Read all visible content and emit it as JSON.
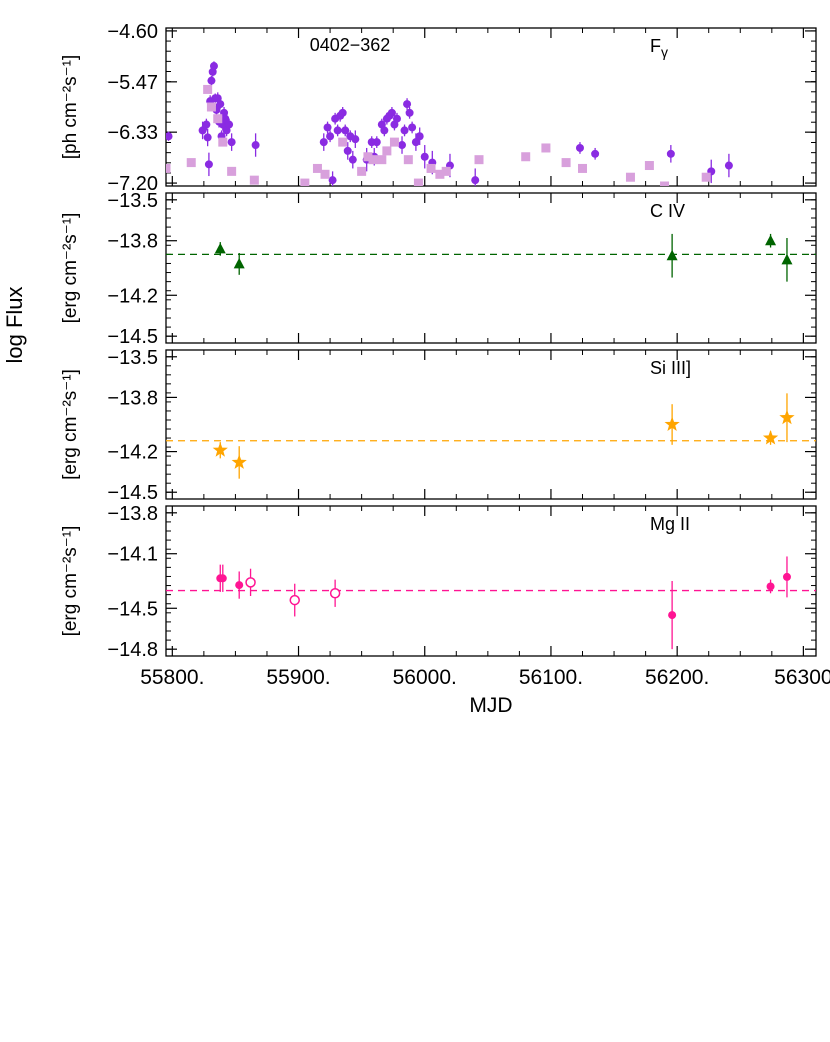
{
  "figure": {
    "common_ylabel": "log Flux",
    "xlabel": "MJD",
    "xlim": [
      55795,
      56310
    ],
    "xticks": [
      55800,
      55900,
      56000,
      56100,
      56200,
      56300
    ],
    "xtick_labels": [
      "55800.",
      "55900.",
      "56000.",
      "56100.",
      "56200.",
      "56300"
    ],
    "source_name": "0402−362"
  },
  "chart_data": [
    {
      "type": "scatter",
      "panel": "gamma",
      "label_main": "F",
      "label_sub": "γ",
      "ylabel": "[ph cm⁻²s⁻¹]",
      "ylim": [
        -7.25,
        -4.55
      ],
      "yticks": [
        -4.6,
        -5.47,
        -6.33,
        -7.2
      ],
      "ytick_labels": [
        "−4.60",
        "−5.47",
        "−6.33",
        "−7.20"
      ],
      "colors": {
        "detections": "#8a2be2",
        "weekly": "#d8a0dc"
      },
      "series": [
        {
          "marker": "circle",
          "color": "#8a2be2",
          "points": [
            [
              55797,
              -6.4,
              0.08
            ],
            [
              55824,
              -6.3,
              0.15
            ],
            [
              55827,
              -6.2,
              0.1
            ],
            [
              55828,
              -6.42,
              0.15
            ],
            [
              55829,
              -6.88,
              0.2
            ],
            [
              55830,
              -5.8,
              0.1
            ],
            [
              55831,
              -5.45,
              0.08
            ],
            [
              55832,
              -5.3,
              0.08
            ],
            [
              55833,
              -5.2,
              0.08
            ],
            [
              55834,
              -5.75,
              0.08
            ],
            [
              55835,
              -5.95,
              0.1
            ],
            [
              55836,
              -5.75,
              0.1
            ],
            [
              55837,
              -6.15,
              0.1
            ],
            [
              55838,
              -5.85,
              0.08
            ],
            [
              55839,
              -6.4,
              0.1
            ],
            [
              55840,
              -6.2,
              0.1
            ],
            [
              55841,
              -6.0,
              0.1
            ],
            [
              55842,
              -6.1,
              0.1
            ],
            [
              55843,
              -6.3,
              0.1
            ],
            [
              55845,
              -6.2,
              0.1
            ],
            [
              55847,
              -6.5,
              0.15
            ],
            [
              55866,
              -6.55,
              0.2
            ],
            [
              55920,
              -6.5,
              0.15
            ],
            [
              55923,
              -6.25,
              0.1
            ],
            [
              55925,
              -6.4,
              0.1
            ],
            [
              55927,
              -7.15,
              0.15
            ],
            [
              55929,
              -6.1,
              0.1
            ],
            [
              55931,
              -6.3,
              0.1
            ],
            [
              55933,
              -6.05,
              0.1
            ],
            [
              55935,
              -6.0,
              0.1
            ],
            [
              55937,
              -6.3,
              0.1
            ],
            [
              55939,
              -6.65,
              0.15
            ],
            [
              55941,
              -6.4,
              0.1
            ],
            [
              55943,
              -6.8,
              0.15
            ],
            [
              55945,
              -6.45,
              0.15
            ],
            [
              55954,
              -6.8,
              0.2
            ],
            [
              55958,
              -6.5,
              0.1
            ],
            [
              55960,
              -6.75,
              0.15
            ],
            [
              55962,
              -6.5,
              0.1
            ],
            [
              55966,
              -6.2,
              0.1
            ],
            [
              55968,
              -6.3,
              0.1
            ],
            [
              55970,
              -6.1,
              0.1
            ],
            [
              55972,
              -6.05,
              0.1
            ],
            [
              55974,
              -6.0,
              0.1
            ],
            [
              55976,
              -6.2,
              0.1
            ],
            [
              55978,
              -6.1,
              0.1
            ],
            [
              55982,
              -6.55,
              0.15
            ],
            [
              55984,
              -6.3,
              0.1
            ],
            [
              55986,
              -5.85,
              0.1
            ],
            [
              55988,
              -6.0,
              0.1
            ],
            [
              55990,
              -6.25,
              0.1
            ],
            [
              55993,
              -6.5,
              0.15
            ],
            [
              55996,
              -6.4,
              0.15
            ],
            [
              56000,
              -6.75,
              0.2
            ],
            [
              56006,
              -6.85,
              0.2
            ],
            [
              56020,
              -6.9,
              0.2
            ],
            [
              56040,
              -7.15,
              0.2
            ],
            [
              56123,
              -6.6,
              0.1
            ],
            [
              56135,
              -6.7,
              0.1
            ],
            [
              56195,
              -6.7,
              0.15
            ],
            [
              56227,
              -7.0,
              0.2
            ],
            [
              56241,
              -6.9,
              0.2
            ]
          ]
        },
        {
          "marker": "square",
          "color": "#d8a0dc",
          "points": [
            [
              55795,
              -6.95
            ],
            [
              55815,
              -6.85
            ],
            [
              55828,
              -5.6
            ],
            [
              55831,
              -5.9
            ],
            [
              55836,
              -6.1
            ],
            [
              55840,
              -6.5
            ],
            [
              55847,
              -7.0
            ],
            [
              55865,
              -7.15
            ],
            [
              55905,
              -7.2
            ],
            [
              55915,
              -6.95
            ],
            [
              55921,
              -7.05
            ],
            [
              55935,
              -6.5
            ],
            [
              55950,
              -7.0
            ],
            [
              55955,
              -6.75
            ],
            [
              55959,
              -6.8
            ],
            [
              55966,
              -6.8
            ],
            [
              55970,
              -6.65
            ],
            [
              55976,
              -6.5
            ],
            [
              55987,
              -6.8
            ],
            [
              55995,
              -7.2
            ],
            [
              56005,
              -6.95
            ],
            [
              56012,
              -7.05
            ],
            [
              56017,
              -7.0
            ],
            [
              56043,
              -6.8
            ],
            [
              56080,
              -6.75
            ],
            [
              56096,
              -6.6
            ],
            [
              56112,
              -6.85
            ],
            [
              56125,
              -6.95
            ],
            [
              56163,
              -7.1
            ],
            [
              56178,
              -6.9
            ],
            [
              56190,
              -7.25
            ],
            [
              56223,
              -7.1
            ]
          ]
        }
      ]
    },
    {
      "type": "scatter",
      "panel": "civ",
      "label_main": "C IV",
      "ylabel": "[erg cm⁻²s⁻¹]",
      "ylim": [
        -14.55,
        -13.45
      ],
      "yticks": [
        -13.5,
        -13.8,
        -14.2,
        -14.5
      ],
      "ytick_labels": [
        "−13.5",
        "−13.8",
        "−14.2",
        "−14.5"
      ],
      "color": "#006400",
      "mean": -13.9,
      "series": [
        {
          "marker": "triangle",
          "color": "#006400",
          "points": [
            [
              55838,
              -13.86,
              0.05
            ],
            [
              55853,
              -13.97,
              0.08
            ],
            [
              56196,
              -13.91,
              0.16
            ],
            [
              56274,
              -13.8,
              0.05
            ],
            [
              56287,
              -13.94,
              0.16
            ]
          ]
        }
      ]
    },
    {
      "type": "scatter",
      "panel": "siiii",
      "label_main": "Si III]",
      "ylabel": "[erg cm⁻²s⁻¹]",
      "ylim": [
        -14.55,
        -13.45
      ],
      "yticks": [
        -13.5,
        -13.8,
        -14.2,
        -14.5
      ],
      "ytick_labels": [
        "−13.5",
        "−13.8",
        "−14.2",
        "−14.5"
      ],
      "color": "#ffa500",
      "mean": -14.12,
      "series": [
        {
          "marker": "star",
          "color": "#ffa500",
          "points": [
            [
              55838,
              -14.19,
              0.06
            ],
            [
              55853,
              -14.28,
              0.12
            ],
            [
              56196,
              -14.0,
              0.15
            ],
            [
              56274,
              -14.1,
              0.05
            ],
            [
              56287,
              -13.95,
              0.18
            ]
          ]
        }
      ]
    },
    {
      "type": "scatter",
      "panel": "mgii",
      "label_main": "Mg II",
      "ylabel": "[erg cm⁻²s⁻¹]",
      "ylim": [
        -14.85,
        -13.75
      ],
      "yticks": [
        -13.8,
        -14.1,
        -14.5,
        -14.8
      ],
      "ytick_labels": [
        "−13.8",
        "−14.1",
        "−14.5",
        "−14.8"
      ],
      "color": "#ff1493",
      "mean": -14.37,
      "series": [
        {
          "marker": "circle",
          "color": "#ff1493",
          "points": [
            [
              55838,
              -14.28,
              0.1
            ],
            [
              55840,
              -14.28,
              0.1
            ],
            [
              55853,
              -14.33,
              0.1
            ],
            [
              56196,
              -14.55,
              0.25
            ],
            [
              56274,
              -14.34,
              0.05
            ],
            [
              56287,
              -14.27,
              0.15
            ]
          ]
        },
        {
          "marker": "open-circle",
          "color": "#ff1493",
          "points": [
            [
              55862,
              -14.31,
              0.1
            ],
            [
              55897,
              -14.44,
              0.12
            ],
            [
              55929,
              -14.39,
              0.1
            ]
          ]
        }
      ]
    }
  ]
}
